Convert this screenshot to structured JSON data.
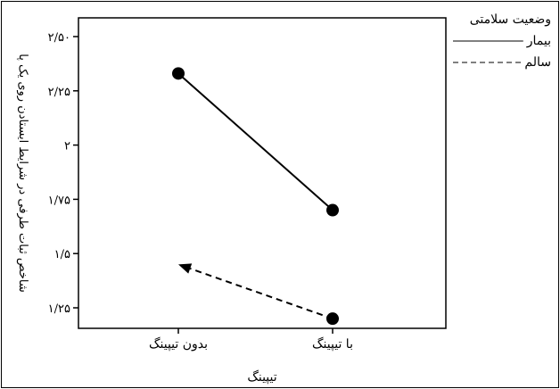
{
  "chart_data": {
    "type": "line",
    "title": "",
    "xlabel": "تیپینگ",
    "ylabel": "شاخص ثبات طرفی در شرایط ایستادن روی یک پا",
    "categories": [
      "بدون تیپینگ",
      "با تیپینگ"
    ],
    "ylim": [
      1.15,
      2.5
    ],
    "y_ticks": [
      {
        "value": 1.25,
        "label": "۱/۲۵"
      },
      {
        "value": 1.5,
        "label": "۱/۵"
      },
      {
        "value": 1.75,
        "label": "۱/۷۵"
      },
      {
        "value": 2.0,
        "label": "۲"
      },
      {
        "value": 2.25,
        "label": "۲/۲۵"
      },
      {
        "value": 2.5,
        "label": "۲/۵۰"
      }
    ],
    "grid": false,
    "legend_position": "top-right",
    "legend_title": "وضعیت سلامتی",
    "series": [
      {
        "name": "بیمار",
        "values": [
          2.33,
          1.7
        ],
        "line_style": "solid",
        "color": "#000000"
      },
      {
        "name": "سالم",
        "values": [
          1.45,
          1.2
        ],
        "line_style": "dashed",
        "color": "#000000"
      }
    ]
  }
}
